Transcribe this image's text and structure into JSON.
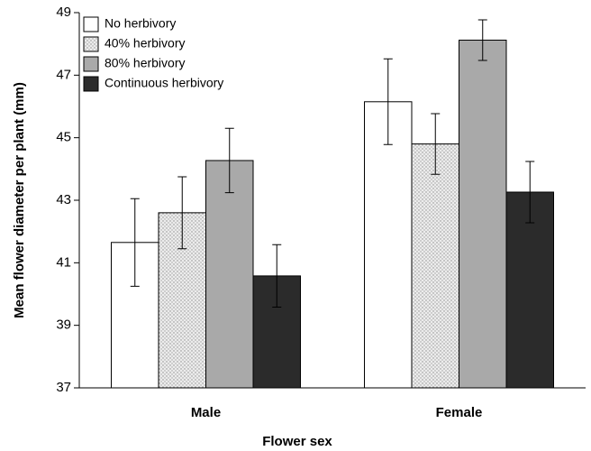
{
  "chart_data": {
    "type": "bar",
    "xlabel": "Flower sex",
    "ylabel": "Mean flower diameter per plant (mm)",
    "categories": [
      "Male",
      "Female"
    ],
    "series": [
      {
        "name": "No herbivory",
        "color": "#ffffff",
        "values": [
          41.65,
          46.15
        ],
        "errors": [
          1.4,
          1.37
        ]
      },
      {
        "name": "40% herbivory",
        "color": "#e6e6e6",
        "pattern": "dots",
        "values": [
          42.6,
          44.8
        ],
        "errors": [
          1.15,
          0.97
        ]
      },
      {
        "name": "80% herbivory",
        "color": "#a9a9a9",
        "values": [
          44.27,
          48.12
        ],
        "errors": [
          1.03,
          0.65
        ]
      },
      {
        "name": "Continuous herbivory",
        "color": "#2b2b2b",
        "values": [
          40.58,
          43.26
        ],
        "errors": [
          1.0,
          0.98
        ]
      }
    ],
    "ylim": [
      37,
      49
    ],
    "yticks": [
      37,
      39,
      41,
      43,
      45,
      47,
      49
    ],
    "legend": "upper left"
  }
}
